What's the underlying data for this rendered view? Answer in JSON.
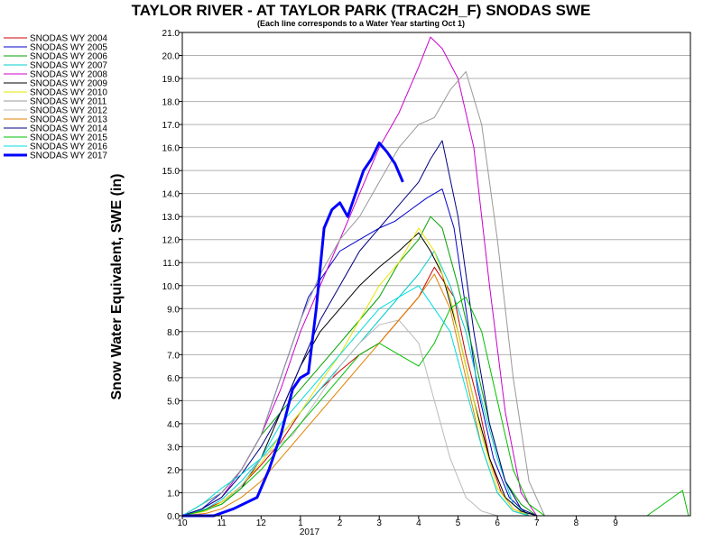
{
  "chart_data": {
    "type": "line",
    "title": "TAYLOR RIVER - AT TAYLOR PARK (TRAC2H_F) SNODAS SWE",
    "subtitle": "(Each line corresponds to a Water Year starting Oct 1)",
    "xlabel": "",
    "ylabel": "Snow Water Equivalent, SWE (in)",
    "x_ticks": [
      "10",
      "11",
      "12",
      "1",
      "2",
      "3",
      "4",
      "5",
      "6",
      "7",
      "8",
      "9"
    ],
    "x_year_label": "2017",
    "xlim": [
      10,
      22.9
    ],
    "ylim": [
      0,
      21
    ],
    "y_ticks": [
      "0.0",
      "1.0",
      "2.0",
      "3.0",
      "4.0",
      "5.0",
      "6.0",
      "7.0",
      "8.0",
      "9.0",
      "10.0",
      "11.0",
      "12.0",
      "13.0",
      "14.0",
      "15.0",
      "16.0",
      "17.0",
      "18.0",
      "19.0",
      "20.0",
      "21.0"
    ],
    "grid": "horizontal",
    "legend_position": "left",
    "series": [
      {
        "name": "SNODAS WY 2004",
        "color": "#cc0000",
        "width": 1,
        "x": [
          10,
          10.6,
          11,
          11.5,
          12,
          12.5,
          13,
          13.5,
          14,
          14.5,
          15,
          15.5,
          16,
          16.4,
          16.9,
          17.2,
          17.5,
          17.8,
          18.1,
          18.4,
          18.8
        ],
        "y": [
          0,
          0.3,
          0.6,
          1.3,
          2.2,
          3.2,
          4.5,
          5.5,
          6.3,
          7,
          7.5,
          8.5,
          9.5,
          10.8,
          9.5,
          7,
          5,
          2.5,
          1,
          0.3,
          0
        ]
      },
      {
        "name": "SNODAS WY 2005",
        "color": "#0000cc",
        "width": 1,
        "x": [
          10,
          10.5,
          11,
          11.5,
          12,
          12.4,
          12.8,
          13.2,
          13.6,
          14,
          14.5,
          15,
          15.4,
          15.8,
          16.2,
          16.6,
          16.9,
          17.2,
          17.5,
          17.9,
          18.3,
          18.8
        ],
        "y": [
          0,
          0.3,
          1,
          2,
          3.5,
          5.5,
          7.5,
          9.5,
          10.5,
          11.5,
          12,
          12.5,
          12.8,
          13.3,
          13.8,
          14.2,
          12.5,
          9,
          5.5,
          2.5,
          0.8,
          0
        ]
      },
      {
        "name": "SNODAS WY 2006",
        "color": "#00a000",
        "width": 1,
        "x": [
          10,
          10.5,
          11,
          11.5,
          12,
          12.5,
          13,
          13.5,
          14,
          14.5,
          15,
          15.5,
          16,
          16.3,
          16.6,
          17,
          17.4,
          17.8,
          18.2,
          18.6,
          19
        ],
        "y": [
          0,
          0.5,
          1,
          2,
          3.5,
          4.5,
          5.5,
          6.5,
          7.5,
          8.5,
          9.5,
          11,
          12,
          13,
          12.5,
          10,
          7,
          4,
          1.5,
          0.5,
          0
        ]
      },
      {
        "name": "SNODAS WY 2007",
        "color": "#00cccc",
        "width": 1,
        "x": [
          10,
          10.6,
          11,
          11.5,
          12,
          12.5,
          13,
          13.5,
          14,
          14.5,
          15,
          15.5,
          16,
          16.4,
          16.8,
          17.2,
          17.6,
          18,
          18.4,
          18.8
        ],
        "y": [
          0,
          0.3,
          0.7,
          1.5,
          2.5,
          3.5,
          4.5,
          5.5,
          6.5,
          7.5,
          8.5,
          9.5,
          10.5,
          11.5,
          10,
          8,
          5,
          2.5,
          0.5,
          0
        ]
      },
      {
        "name": "SNODAS WY 2008",
        "color": "#cc00cc",
        "width": 1,
        "x": [
          10,
          10.5,
          11,
          11.5,
          12,
          12.5,
          13,
          13.5,
          14,
          14.5,
          15,
          15.5,
          16,
          16.3,
          16.6,
          17,
          17.4,
          17.8,
          18.2,
          18.6,
          19
        ],
        "y": [
          0,
          0.3,
          0.8,
          2,
          3.5,
          5.5,
          8,
          10,
          12,
          14,
          16,
          17.5,
          19.5,
          20.8,
          20.3,
          19,
          16,
          10,
          4.5,
          1,
          0
        ]
      },
      {
        "name": "SNODAS WY 2009",
        "color": "#000000",
        "width": 1,
        "x": [
          10,
          10.5,
          11,
          11.5,
          12,
          12.5,
          13,
          13.5,
          14,
          14.5,
          15,
          15.5,
          16,
          16.3,
          16.6,
          17,
          17.4,
          17.8,
          18.2,
          18.6,
          19
        ],
        "y": [
          0,
          0.2,
          0.5,
          1.2,
          2.5,
          4.5,
          6.5,
          8,
          9,
          10,
          10.8,
          11.5,
          12.3,
          11.5,
          10.5,
          8,
          5,
          2.5,
          0.8,
          0.2,
          0
        ]
      },
      {
        "name": "SNODAS WY 2010",
        "color": "#e6e600",
        "width": 1,
        "x": [
          10,
          10.6,
          11,
          11.5,
          12,
          12.5,
          13,
          13.5,
          14,
          14.5,
          15,
          15.5,
          16,
          16.4,
          16.8,
          17.2,
          17.6,
          18,
          18.4,
          18.8
        ],
        "y": [
          0,
          0.2,
          0.6,
          1.3,
          2.3,
          3.5,
          4.5,
          5.8,
          7,
          8.5,
          10,
          11,
          12.5,
          11.5,
          9.5,
          6.5,
          3.5,
          1.2,
          0.3,
          0
        ]
      },
      {
        "name": "SNODAS WY 2011",
        "color": "#999999",
        "width": 1,
        "x": [
          10,
          10.5,
          11,
          11.5,
          12,
          12.5,
          13,
          13.5,
          14,
          14.5,
          15,
          15.5,
          16,
          16.4,
          16.8,
          17.2,
          17.6,
          18,
          18.4,
          18.8,
          19.2
        ],
        "y": [
          0,
          0.5,
          1,
          2,
          3.5,
          6,
          8.5,
          10.5,
          12,
          13,
          14.5,
          16,
          17,
          17.3,
          18.5,
          19.3,
          17,
          12,
          6,
          1.5,
          0
        ]
      },
      {
        "name": "SNODAS WY 2012",
        "color": "#bbbbbb",
        "width": 1,
        "x": [
          10,
          10.5,
          11,
          11.5,
          12,
          12.4,
          12.8,
          13.2,
          13.6,
          14,
          14.5,
          15,
          15.5,
          16,
          16.4,
          16.8,
          17.2,
          17.6,
          18
        ],
        "y": [
          0,
          0.2,
          0.5,
          1.3,
          2.5,
          3,
          3.5,
          4.5,
          5.5,
          6.5,
          7.5,
          8.3,
          8.5,
          7.5,
          5,
          2.5,
          0.8,
          0.2,
          0
        ]
      },
      {
        "name": "SNODAS WY 2013",
        "color": "#e08000",
        "width": 1,
        "x": [
          10,
          10.6,
          11,
          11.5,
          12,
          12.5,
          13,
          13.5,
          14,
          14.5,
          15,
          15.5,
          16,
          16.4,
          16.8,
          17.2,
          17.6,
          18,
          18.4,
          18.8
        ],
        "y": [
          0,
          0.1,
          0.3,
          0.8,
          1.5,
          2.5,
          3.5,
          4.5,
          5.5,
          6.5,
          7.5,
          8.5,
          9.5,
          10.5,
          9,
          6,
          3,
          1,
          0.2,
          0
        ]
      },
      {
        "name": "SNODAS WY 2014",
        "color": "#000080",
        "width": 1,
        "x": [
          10,
          10.5,
          11,
          11.5,
          12,
          12.5,
          13,
          13.5,
          14,
          14.5,
          15,
          15.5,
          16,
          16.3,
          16.6,
          17,
          17.4,
          17.8,
          18.2,
          18.6,
          19
        ],
        "y": [
          0,
          0.3,
          0.8,
          1.8,
          3,
          4.5,
          6.5,
          8.5,
          10,
          11.5,
          12.5,
          13.5,
          14.5,
          15.5,
          16.3,
          13,
          8,
          4,
          1.5,
          0.3,
          0
        ]
      },
      {
        "name": "SNODAS WY 2015",
        "color": "#00c000",
        "width": 1,
        "x": [
          10,
          10.5,
          11,
          11.5,
          12,
          12.5,
          13,
          13.5,
          14,
          14.5,
          15,
          15.5,
          16,
          16.4,
          16.8,
          17.2,
          17.6,
          18,
          18.4,
          18.8,
          19.2,
          21.8,
          22.7,
          22.85
        ],
        "y": [
          0,
          0.2,
          0.5,
          1.2,
          2,
          3,
          4,
          5,
          6,
          7,
          7.5,
          7,
          6.5,
          7.5,
          9,
          9.5,
          8,
          5,
          2,
          0.5,
          0,
          0,
          1.1,
          0
        ]
      },
      {
        "name": "SNODAS WY 2016",
        "color": "#00dddd",
        "width": 1,
        "x": [
          10,
          10.5,
          11,
          11.5,
          12,
          12.5,
          13,
          13.5,
          14,
          14.5,
          15,
          15.5,
          16,
          16.4,
          16.8,
          17.2,
          17.6,
          18,
          18.4,
          18.8
        ],
        "y": [
          0,
          0.5,
          1.2,
          1.8,
          2.5,
          4,
          5,
          6,
          7,
          8,
          9,
          9.5,
          10,
          9,
          8,
          5.5,
          3,
          1,
          0.2,
          0
        ]
      },
      {
        "name": "SNODAS WY 2017",
        "color": "#0000ff",
        "width": 3,
        "x": [
          10,
          10.8,
          11.3,
          11.9,
          12.2,
          12.5,
          12.8,
          13,
          13.2,
          13.4,
          13.6,
          13.8,
          14,
          14.2,
          14.4,
          14.6,
          14.8,
          15,
          15.2,
          15.4,
          15.6
        ],
        "y": [
          0,
          0,
          0.3,
          0.8,
          2,
          3.5,
          5.5,
          6,
          6.2,
          9,
          12.5,
          13.3,
          13.6,
          13,
          14,
          15,
          15.5,
          16.2,
          15.8,
          15.3,
          14.5
        ]
      }
    ]
  }
}
